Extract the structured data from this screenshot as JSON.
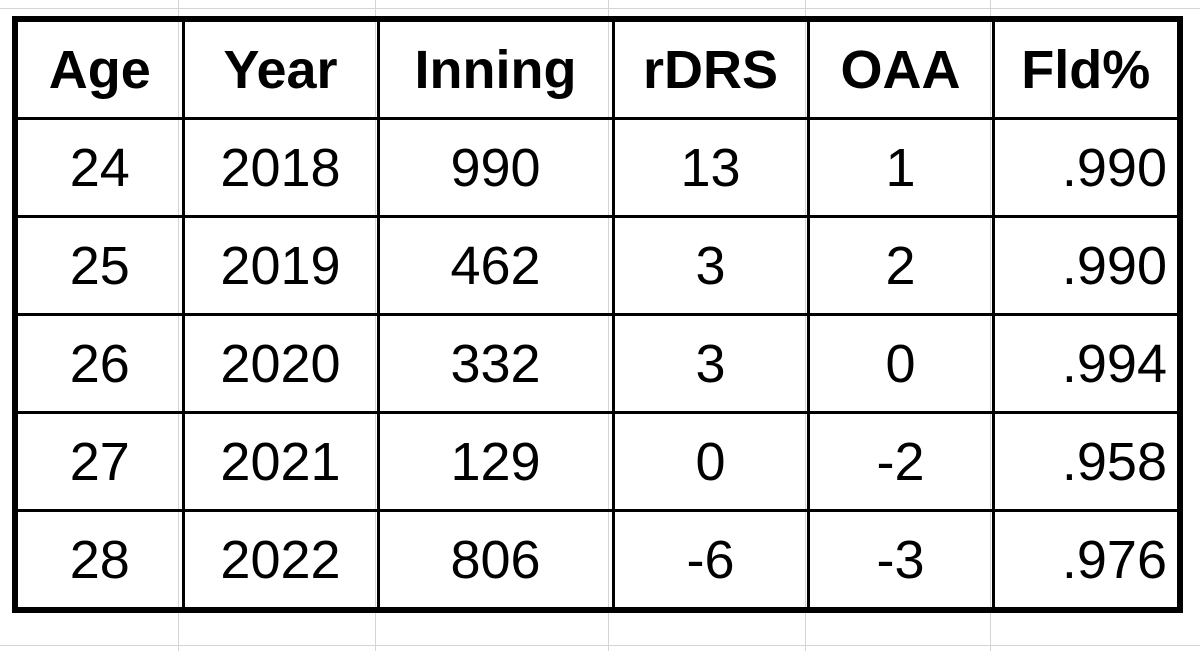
{
  "table": {
    "header": [
      "Age",
      "Year",
      "Inning",
      "rDRS",
      "OAA",
      "Fld%"
    ],
    "rows": [
      [
        24,
        2018,
        990,
        13,
        1,
        ".990"
      ],
      [
        25,
        2019,
        462,
        3,
        2,
        ".990"
      ],
      [
        26,
        2020,
        332,
        3,
        0,
        ".994"
      ],
      [
        27,
        2021,
        129,
        0,
        -2,
        ".958"
      ],
      [
        28,
        2022,
        806,
        -6,
        -3,
        ".976"
      ]
    ]
  }
}
